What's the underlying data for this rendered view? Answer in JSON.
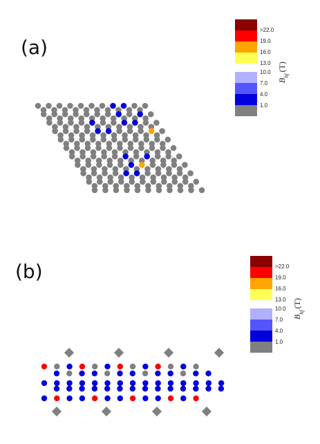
{
  "colors": {
    "gray": "#808080",
    "blue_dark": "#0000dd",
    "blue_mid": "#5555ff",
    "blue_light": "#b0b0ff",
    "yellow": "#ffff55",
    "orange": "#ffa500",
    "red": "#ff0000",
    "dark_red": "#8b0000"
  },
  "panel_a": {
    "label": "(a)",
    "legend": {
      "axis_label": "B_hf (T)",
      "axis_main": "B",
      "axis_sub": "hf",
      "axis_unit": "(T)",
      "upper_group": [
        {
          "color": "#8b0000",
          "label": ">22.0"
        },
        {
          "color": "#ff0000",
          "label": "19.0"
        },
        {
          "color": "#ffa500",
          "label": "16.0"
        },
        {
          "color": "#ffff55",
          "label": "13.0"
        }
      ],
      "lower_group": [
        {
          "color": "#b0b0ff",
          "label": "10.0"
        },
        {
          "color": "#5555ff",
          "label": "7.0"
        },
        {
          "color": "#0000dd",
          "label": "4.0"
        },
        {
          "color": "#808080",
          "label": "1.0"
        }
      ]
    },
    "lattice": {
      "rows": 11,
      "cols": 11,
      "special_sites": [
        {
          "row": 0,
          "col": 7,
          "color": "blue"
        },
        {
          "row": 0,
          "col": 8,
          "color": "blue"
        },
        {
          "row": 1,
          "col": 7,
          "color": "blue"
        },
        {
          "row": 1,
          "col": 9,
          "color": "blue"
        },
        {
          "row": 2,
          "col": 4,
          "color": "blue"
        },
        {
          "row": 2,
          "col": 7,
          "color": "blue"
        },
        {
          "row": 2,
          "col": 8,
          "color": "blue"
        },
        {
          "row": 3,
          "col": 4,
          "color": "blue"
        },
        {
          "row": 3,
          "col": 5,
          "color": "blue"
        },
        {
          "row": 3,
          "col": 9,
          "color": "orange"
        },
        {
          "row": 6,
          "col": 7,
          "color": "blue"
        },
        {
          "row": 6,
          "col": 5,
          "color": "blue"
        },
        {
          "row": 7,
          "col": 5,
          "color": "blue"
        },
        {
          "row": 7,
          "col": 6,
          "color": "orange"
        },
        {
          "row": 8,
          "col": 4,
          "color": "blue"
        },
        {
          "row": 8,
          "col": 5,
          "color": "blue"
        }
      ]
    }
  },
  "panel_b": {
    "label": "(b)",
    "legend": {
      "axis_label": "B_hf (T)",
      "axis_main": "B",
      "axis_sub": "hf",
      "axis_unit": "(T)",
      "upper_group": [
        {
          "color": "#8b0000",
          "label": ">22.0"
        },
        {
          "color": "#ff0000",
          "label": "19.0"
        },
        {
          "color": "#ffa500",
          "label": "16.0"
        },
        {
          "color": "#ffff55",
          "label": "13.0"
        }
      ],
      "lower_group": [
        {
          "color": "#b0b0ff",
          "label": "10.0"
        },
        {
          "color": "#5555ff",
          "label": "7.0"
        },
        {
          "color": "#0000dd",
          "label": "4.0"
        },
        {
          "color": "#808080",
          "label": "1.0"
        }
      ]
    },
    "chain": {
      "units": 4,
      "row_top": [
        "red",
        "gray",
        "blue",
        "red",
        "gray",
        "blue",
        "red",
        "gray",
        "blue",
        "red",
        "gray",
        "blue",
        "gray"
      ],
      "row_upper": [
        "blue",
        "gray",
        "blue",
        "blue",
        "gray",
        "blue",
        "blue",
        "gray",
        "blue",
        "blue",
        "gray",
        "blue",
        "blue"
      ],
      "row_mid": [
        "blue",
        "blue",
        "blue",
        "blue",
        "blue",
        "blue",
        "blue",
        "blue",
        "blue",
        "blue",
        "blue",
        "blue",
        "blue",
        "blue",
        "blue"
      ],
      "row_lower": [
        "blue",
        "blue",
        "blue",
        "blue",
        "blue",
        "blue",
        "blue",
        "blue",
        "blue",
        "blue",
        "blue",
        "blue",
        "blue",
        "blue"
      ],
      "row_bottom": [
        "blue",
        "red",
        "blue",
        "blue",
        "red",
        "blue",
        "blue",
        "red",
        "blue",
        "blue",
        "red",
        "blue",
        "red"
      ]
    }
  }
}
